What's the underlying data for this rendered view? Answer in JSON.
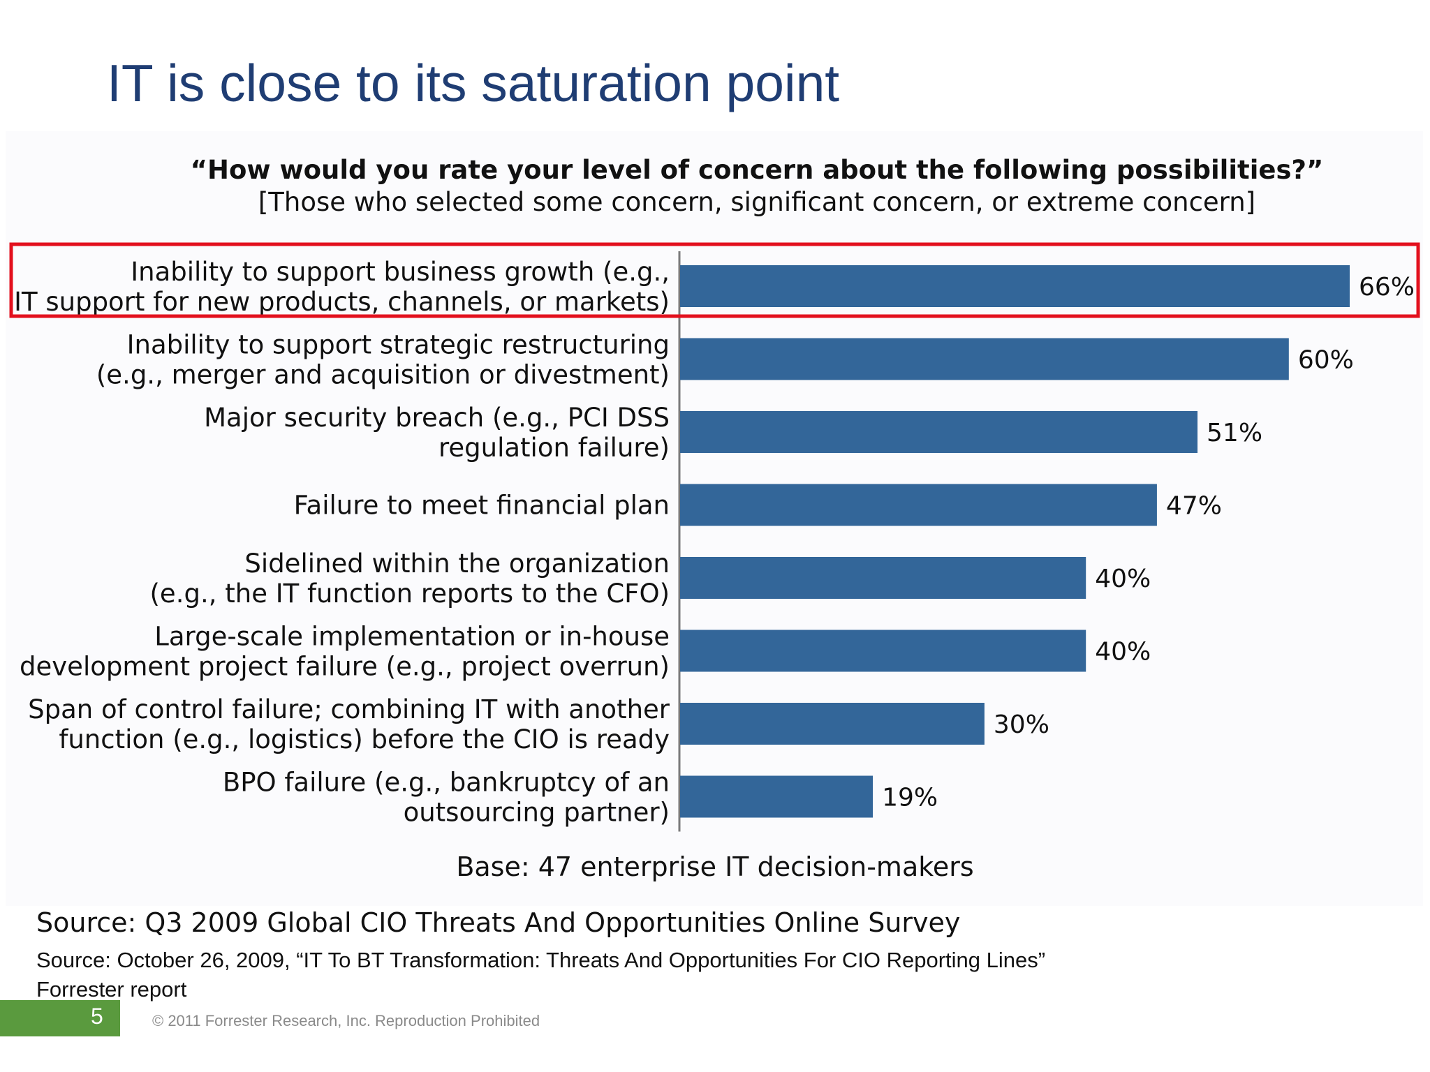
{
  "slide": {
    "title": "IT is close to its saturation point",
    "question": "“How would you rate your level of concern about the following possibilities?”",
    "subquestion": "[Those who selected some concern, significant concern, or extreme concern]",
    "base": "Base: 47 enterprise IT decision-makers",
    "source_survey": "Source: Q3 2009 Global CIO Threats And Opportunities Online Survey",
    "source_report_line1": "Source: October 26, 2009, “IT To BT Transformation: Threats And Opportunities For CIO Reporting Lines”",
    "source_report_line2": "Forrester report",
    "page_number": "5",
    "copyright": "© 2011 Forrester Research, Inc. Reproduction Prohibited"
  },
  "colors": {
    "title": "#1f3d73",
    "bar": "#336699",
    "highlight": "#e3101d",
    "page_badge": "#5a9a3e"
  },
  "chart_data": {
    "type": "bar",
    "orientation": "horizontal",
    "categories": [
      [
        "Inability to support business growth (e.g.,",
        "IT support for new products, channels, or markets)"
      ],
      [
        "Inability to support strategic restructuring",
        "(e.g., merger and acquisition or divestment)"
      ],
      [
        "Major security breach (e.g., PCI DSS",
        "regulation failure)"
      ],
      [
        "Failure to meet financial plan"
      ],
      [
        "Sidelined within the organization",
        "(e.g., the IT function reports to the CFO)"
      ],
      [
        "Large-scale implementation or in-house",
        "development project failure (e.g., project overrun)"
      ],
      [
        "Span of control failure; combining IT with another",
        "function (e.g., logistics) before the CIO is ready"
      ],
      [
        "BPO failure (e.g., bankruptcy of an",
        "outsourcing partner)"
      ]
    ],
    "values": [
      66,
      60,
      51,
      47,
      40,
      40,
      30,
      19
    ],
    "value_labels": [
      "66%",
      "60%",
      "51%",
      "47%",
      "40%",
      "40%",
      "30%",
      "19%"
    ],
    "unit": "%",
    "xlim": [
      0,
      66
    ],
    "highlighted_index": 0,
    "grid": false,
    "legend": "none"
  }
}
